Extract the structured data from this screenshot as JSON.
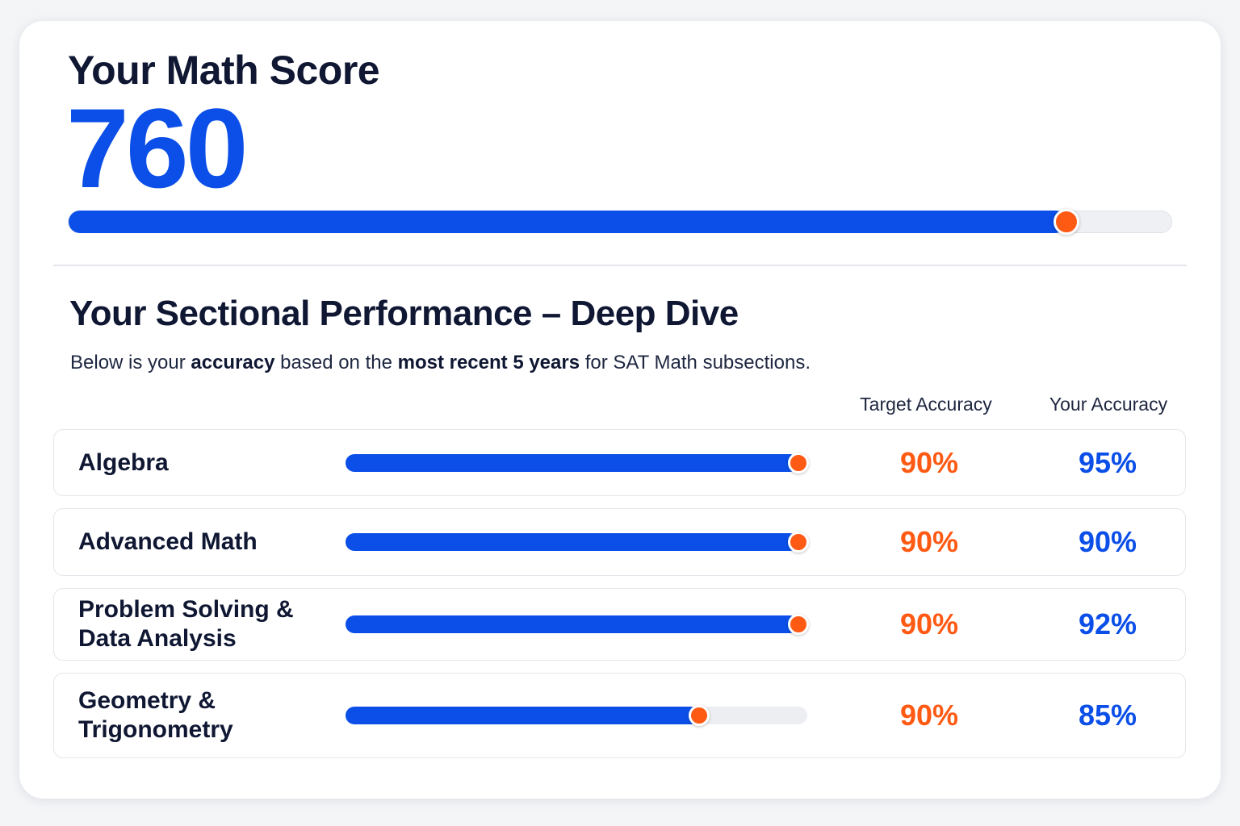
{
  "score": {
    "title": "Your Math Score",
    "value": "760",
    "progress_fraction": 0.905,
    "fill_color": "#0b4fe8",
    "knob_color": "#ff5a14"
  },
  "section": {
    "title": "Your Sectional Performance – Deep Dive",
    "description": {
      "part1": "Below is your ",
      "bold1": "accuracy",
      "part2": " based on the ",
      "bold2": "most recent 5 years",
      "part3": " for SAT Math subsections."
    },
    "columns": {
      "target": "Target Accuracy",
      "yours": "Your Accuracy"
    },
    "rows": [
      {
        "label": "Algebra",
        "target": "90%",
        "yours": "95%",
        "bar_fraction": 0.98
      },
      {
        "label": "Advanced Math",
        "target": "90%",
        "yours": "90%",
        "bar_fraction": 0.98
      },
      {
        "label": "Problem Solving & Data Analysis",
        "target": "90%",
        "yours": "92%",
        "bar_fraction": 0.98
      },
      {
        "label": "Geometry & Trigonometry",
        "target": "90%",
        "yours": "85%",
        "bar_fraction": 0.765
      }
    ]
  }
}
